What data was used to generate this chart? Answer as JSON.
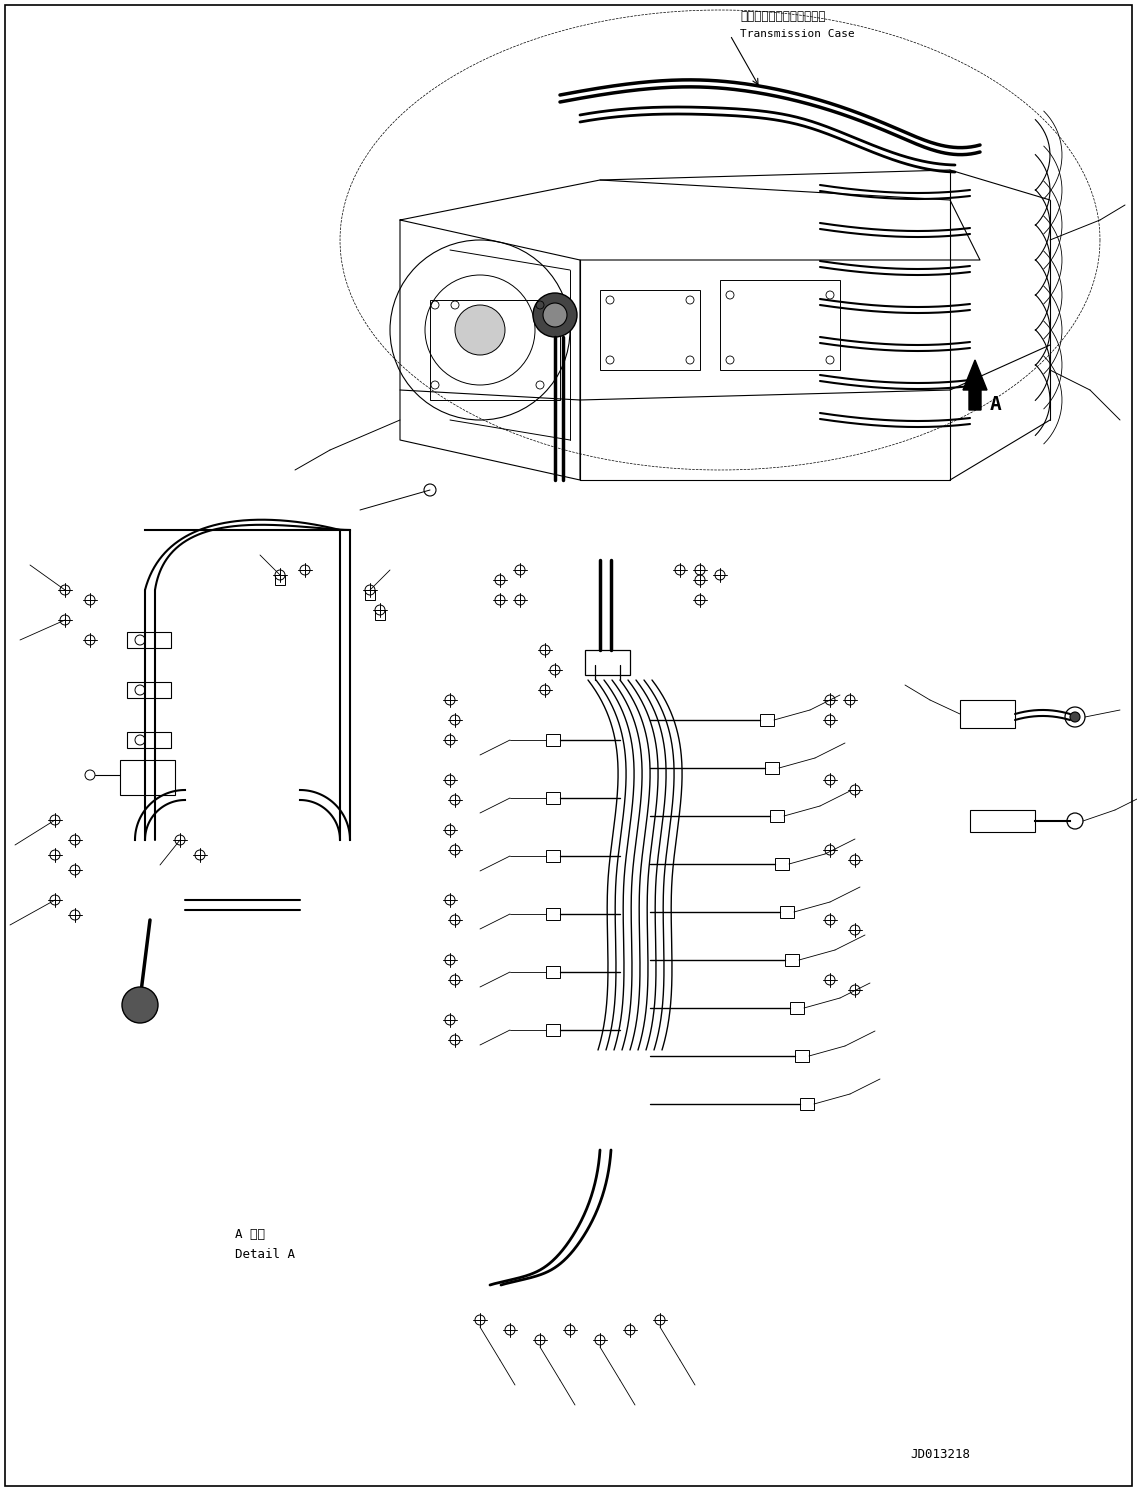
{
  "background_color": "#ffffff",
  "line_color": "#000000",
  "fig_width": 11.37,
  "fig_height": 14.91,
  "dpi": 100,
  "label_transmission_jp": "トランスミッションケース",
  "label_transmission_en": "Transmission Case",
  "label_detail_jp": "A 詳細",
  "label_detail_en": "Detail A",
  "label_A": "A",
  "label_code": "JD013218"
}
